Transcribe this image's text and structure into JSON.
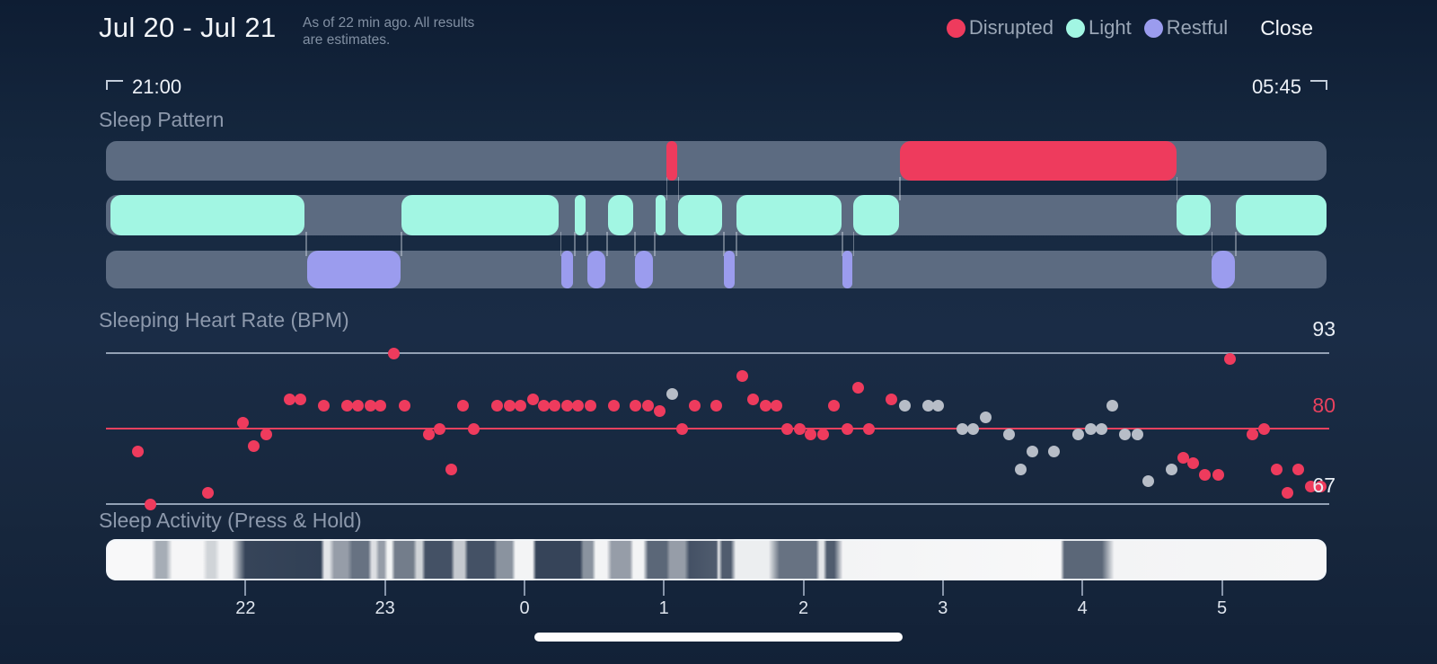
{
  "header": {
    "title": "Jul 20 - Jul 21",
    "subtitle_line1": "As of 22 min ago. All results",
    "subtitle_line2": "are estimates.",
    "close_label": "Close"
  },
  "legend": [
    {
      "label": "Disrupted",
      "color": "#ee3b5d"
    },
    {
      "label": "Light",
      "color": "#a2f6e3"
    },
    {
      "label": "Restful",
      "color": "#9b9cee"
    }
  ],
  "time_range": {
    "start": "21:00",
    "end": "05:45"
  },
  "colors": {
    "background": "#15273e",
    "track_base": "#5c6b81",
    "disrupted": "#ee3b5d",
    "light": "#a2f6e3",
    "restful": "#9b9cee",
    "hr_red_dot": "#ee3b5d",
    "hr_gray_dot": "#b7bdc7",
    "hr_gridline_gray": "#93a1b5",
    "hr_gridline_red": "#e8415e"
  },
  "chart_data": [
    {
      "type": "bar",
      "title": "Sleep Pattern",
      "x_axis": {
        "start": "21:00",
        "end": "05:45",
        "unit_pct_note": "segments are % of 21:00-05:45 span"
      },
      "states": [
        {
          "name": "Disrupted",
          "color": "#ee3b5d",
          "track": 0,
          "segments": [
            [
              45.92,
              46.8
            ],
            [
              65.05,
              87.71
            ]
          ]
        },
        {
          "name": "Light",
          "color": "#a2f6e3",
          "track": 1,
          "segments": [
            [
              0.37,
              16.26
            ],
            [
              24.21,
              37.09
            ],
            [
              38.41,
              39.29
            ],
            [
              41.13,
              43.19
            ],
            [
              45.03,
              45.84
            ],
            [
              46.87,
              50.48
            ],
            [
              51.66,
              60.26
            ],
            [
              61.22,
              64.97
            ],
            [
              87.71,
              90.51
            ],
            [
              92.57,
              100
            ]
          ]
        },
        {
          "name": "Restful",
          "color": "#9b9cee",
          "track": 2,
          "segments": [
            [
              16.48,
              24.13
            ],
            [
              37.31,
              38.26
            ],
            [
              39.44,
              40.91
            ],
            [
              43.34,
              44.81
            ],
            [
              50.63,
              51.51
            ],
            [
              60.34,
              61.15
            ],
            [
              90.58,
              92.49
            ]
          ]
        }
      ],
      "connectors": {
        "upper": [
          45.88,
          46.84,
          65.01,
          87.71
        ],
        "lower": [
          16.37,
          24.17,
          37.2,
          38.34,
          39.37,
          41.02,
          43.27,
          44.92,
          50.56,
          51.59,
          60.3,
          61.19,
          90.55,
          92.53
        ]
      }
    },
    {
      "type": "scatter",
      "title": "Sleeping Heart Rate (BPM)",
      "ylim": [
        67,
        93
      ],
      "gridlines": [
        {
          "value": 93,
          "line_color": "#93a1b5",
          "label_color": "#e9eef5"
        },
        {
          "value": 80,
          "line_color": "#e8415e",
          "label_color": "#e8415e"
        },
        {
          "value": 67,
          "line_color": "#93a1b5",
          "label_color": "#e9eef5"
        }
      ],
      "point_colors": {
        "r": "#ee3b5d",
        "g": "#b7bdc7"
      },
      "points": [
        [
          2.6,
          76,
          "r"
        ],
        [
          3.6,
          67,
          "r"
        ],
        [
          8.3,
          69,
          "r"
        ],
        [
          11.2,
          81,
          "r"
        ],
        [
          12.1,
          77,
          "r"
        ],
        [
          13.1,
          79,
          "r"
        ],
        [
          15.0,
          85,
          "r"
        ],
        [
          15.9,
          85,
          "r"
        ],
        [
          17.8,
          84,
          "r"
        ],
        [
          19.7,
          84,
          "r"
        ],
        [
          20.6,
          84,
          "r"
        ],
        [
          21.6,
          84,
          "r"
        ],
        [
          22.4,
          84,
          "r"
        ],
        [
          23.5,
          93,
          "r"
        ],
        [
          24.4,
          84,
          "r"
        ],
        [
          26.4,
          79,
          "r"
        ],
        [
          27.3,
          80,
          "r"
        ],
        [
          28.2,
          73,
          "r"
        ],
        [
          29.2,
          84,
          "r"
        ],
        [
          30.1,
          80,
          "r"
        ],
        [
          32.0,
          84,
          "r"
        ],
        [
          33.0,
          84,
          "r"
        ],
        [
          33.9,
          84,
          "r"
        ],
        [
          34.9,
          85,
          "r"
        ],
        [
          35.8,
          84,
          "r"
        ],
        [
          36.7,
          84,
          "r"
        ],
        [
          37.7,
          84,
          "r"
        ],
        [
          38.6,
          84,
          "r"
        ],
        [
          39.6,
          84,
          "r"
        ],
        [
          41.5,
          84,
          "r"
        ],
        [
          43.3,
          84,
          "r"
        ],
        [
          44.3,
          84,
          "r"
        ],
        [
          45.3,
          83,
          "r"
        ],
        [
          46.3,
          86,
          "g"
        ],
        [
          47.1,
          80,
          "r"
        ],
        [
          48.1,
          84,
          "r"
        ],
        [
          49.9,
          84,
          "r"
        ],
        [
          52.0,
          89,
          "r"
        ],
        [
          52.9,
          85,
          "r"
        ],
        [
          53.9,
          84,
          "r"
        ],
        [
          54.8,
          84,
          "r"
        ],
        [
          55.7,
          80,
          "r"
        ],
        [
          56.7,
          80,
          "r"
        ],
        [
          57.6,
          79,
          "r"
        ],
        [
          58.6,
          79,
          "r"
        ],
        [
          59.5,
          84,
          "r"
        ],
        [
          60.6,
          80,
          "r"
        ],
        [
          61.5,
          87,
          "r"
        ],
        [
          62.4,
          80,
          "r"
        ],
        [
          64.2,
          85,
          "r"
        ],
        [
          65.3,
          84,
          "g"
        ],
        [
          67.2,
          84,
          "g"
        ],
        [
          68.0,
          84,
          "g"
        ],
        [
          70.0,
          80,
          "g"
        ],
        [
          70.9,
          80,
          "g"
        ],
        [
          71.9,
          82,
          "g"
        ],
        [
          73.8,
          79,
          "g"
        ],
        [
          74.8,
          73,
          "g"
        ],
        [
          75.7,
          76,
          "g"
        ],
        [
          77.5,
          76,
          "g"
        ],
        [
          79.5,
          79,
          "g"
        ],
        [
          80.5,
          80,
          "g"
        ],
        [
          81.4,
          80,
          "g"
        ],
        [
          82.3,
          84,
          "g"
        ],
        [
          83.3,
          79,
          "g"
        ],
        [
          84.3,
          79,
          "g"
        ],
        [
          85.2,
          71,
          "g"
        ],
        [
          87.1,
          73,
          "g"
        ],
        [
          88.1,
          75,
          "r"
        ],
        [
          88.9,
          74,
          "r"
        ],
        [
          89.8,
          72,
          "r"
        ],
        [
          90.9,
          72,
          "r"
        ],
        [
          91.9,
          92,
          "r"
        ],
        [
          93.7,
          79,
          "r"
        ],
        [
          94.7,
          80,
          "r"
        ],
        [
          95.7,
          73,
          "r"
        ],
        [
          96.6,
          69,
          "r"
        ],
        [
          97.5,
          73,
          "r"
        ],
        [
          98.5,
          70,
          "r"
        ],
        [
          99.3,
          70,
          "r"
        ]
      ]
    },
    {
      "type": "heatmap",
      "title": "Sleep Activity (Press & Hold)",
      "lightness_note": "pairs of [position_pct, lightness_pct]; 100=white movement, 0=dark still",
      "gradient_stops": [
        [
          0,
          97
        ],
        [
          3.6,
          97
        ],
        [
          4.0,
          62
        ],
        [
          4.8,
          62
        ],
        [
          5.3,
          96
        ],
        [
          7.8,
          96
        ],
        [
          8.2,
          80
        ],
        [
          8.8,
          80
        ],
        [
          9.2,
          95
        ],
        [
          10.2,
          95
        ],
        [
          11.3,
          14
        ],
        [
          17.5,
          12
        ],
        [
          17.8,
          88
        ],
        [
          18.2,
          88
        ],
        [
          18.6,
          55
        ],
        [
          19.7,
          55
        ],
        [
          20.1,
          35
        ],
        [
          21.4,
          35
        ],
        [
          21.7,
          85
        ],
        [
          22.0,
          85
        ],
        [
          22.3,
          55
        ],
        [
          22.7,
          55
        ],
        [
          23.0,
          95
        ],
        [
          23.3,
          95
        ],
        [
          23.6,
          40
        ],
        [
          25.1,
          40
        ],
        [
          25.4,
          80
        ],
        [
          25.8,
          80
        ],
        [
          26.1,
          20
        ],
        [
          28.2,
          20
        ],
        [
          28.5,
          75
        ],
        [
          29.3,
          75
        ],
        [
          29.6,
          20
        ],
        [
          31.7,
          20
        ],
        [
          32.0,
          50
        ],
        [
          33.2,
          50
        ],
        [
          33.5,
          95
        ],
        [
          34.9,
          95
        ],
        [
          35.2,
          14
        ],
        [
          38.8,
          14
        ],
        [
          39.1,
          50
        ],
        [
          39.8,
          50
        ],
        [
          40.1,
          95
        ],
        [
          41.0,
          95
        ],
        [
          41.4,
          55
        ],
        [
          42.9,
          55
        ],
        [
          43.2,
          95
        ],
        [
          44.0,
          95
        ],
        [
          44.4,
          30
        ],
        [
          45.9,
          30
        ],
        [
          46.2,
          55
        ],
        [
          47.4,
          55
        ],
        [
          47.8,
          20
        ],
        [
          50.0,
          25
        ],
        [
          50.2,
          88
        ],
        [
          50.5,
          25
        ],
        [
          51.2,
          25
        ],
        [
          51.6,
          92
        ],
        [
          54.3,
          92
        ],
        [
          55.2,
          35
        ],
        [
          58.2,
          35
        ],
        [
          58.5,
          88
        ],
        [
          58.8,
          88
        ],
        [
          59.1,
          25
        ],
        [
          59.7,
          25
        ],
        [
          60.4,
          95
        ],
        [
          78.3,
          97
        ],
        [
          78.6,
          30
        ],
        [
          81.7,
          30
        ],
        [
          82.7,
          95
        ],
        [
          100,
          96
        ]
      ],
      "x_ticks": [
        {
          "label": "22",
          "pct": 11.43
        },
        {
          "label": "23",
          "pct": 22.86
        },
        {
          "label": "0",
          "pct": 34.29
        },
        {
          "label": "1",
          "pct": 45.71
        },
        {
          "label": "2",
          "pct": 57.14
        },
        {
          "label": "3",
          "pct": 68.57
        },
        {
          "label": "4",
          "pct": 80.0
        },
        {
          "label": "5",
          "pct": 91.43
        }
      ]
    }
  ]
}
